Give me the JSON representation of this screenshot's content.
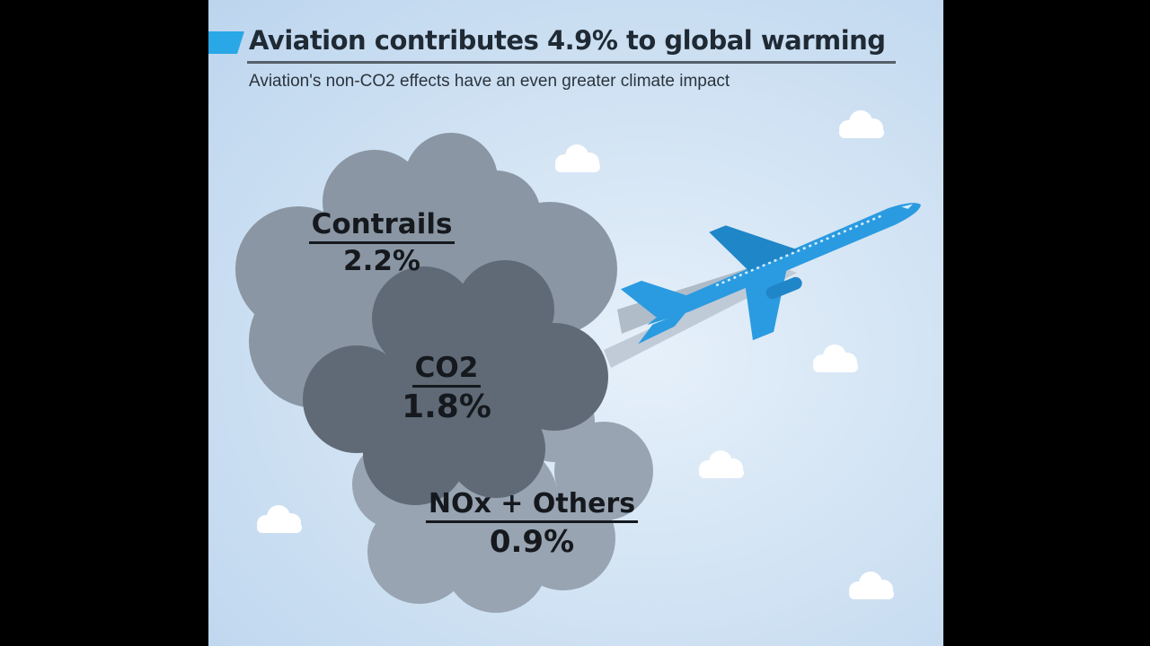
{
  "header": {
    "title": "Aviation contributes 4.9% to global warming",
    "subtitle": "Aviation's non-CO2 effects have an even greater climate impact"
  },
  "segments": [
    {
      "label": "Contrails",
      "value_text": "2.2%",
      "value": 2.2
    },
    {
      "label": "CO2",
      "value_text": "1.8%",
      "value": 1.8
    },
    {
      "label": "NOx + Others",
      "value_text": "0.9%",
      "value": 0.9
    }
  ],
  "colors": {
    "background": "#000000",
    "sky": "#d3e4f4",
    "accent": "#2aa7e6",
    "cloud_contrails": "#8a96a3",
    "cloud_co2": "#5f6a76",
    "cloud_nox": "#98a4b1",
    "airplane": "#2a9be0",
    "text": "#15191e"
  },
  "icons": [
    "title-accent-icon",
    "airplane-icon",
    "white-cloud-icon"
  ]
}
